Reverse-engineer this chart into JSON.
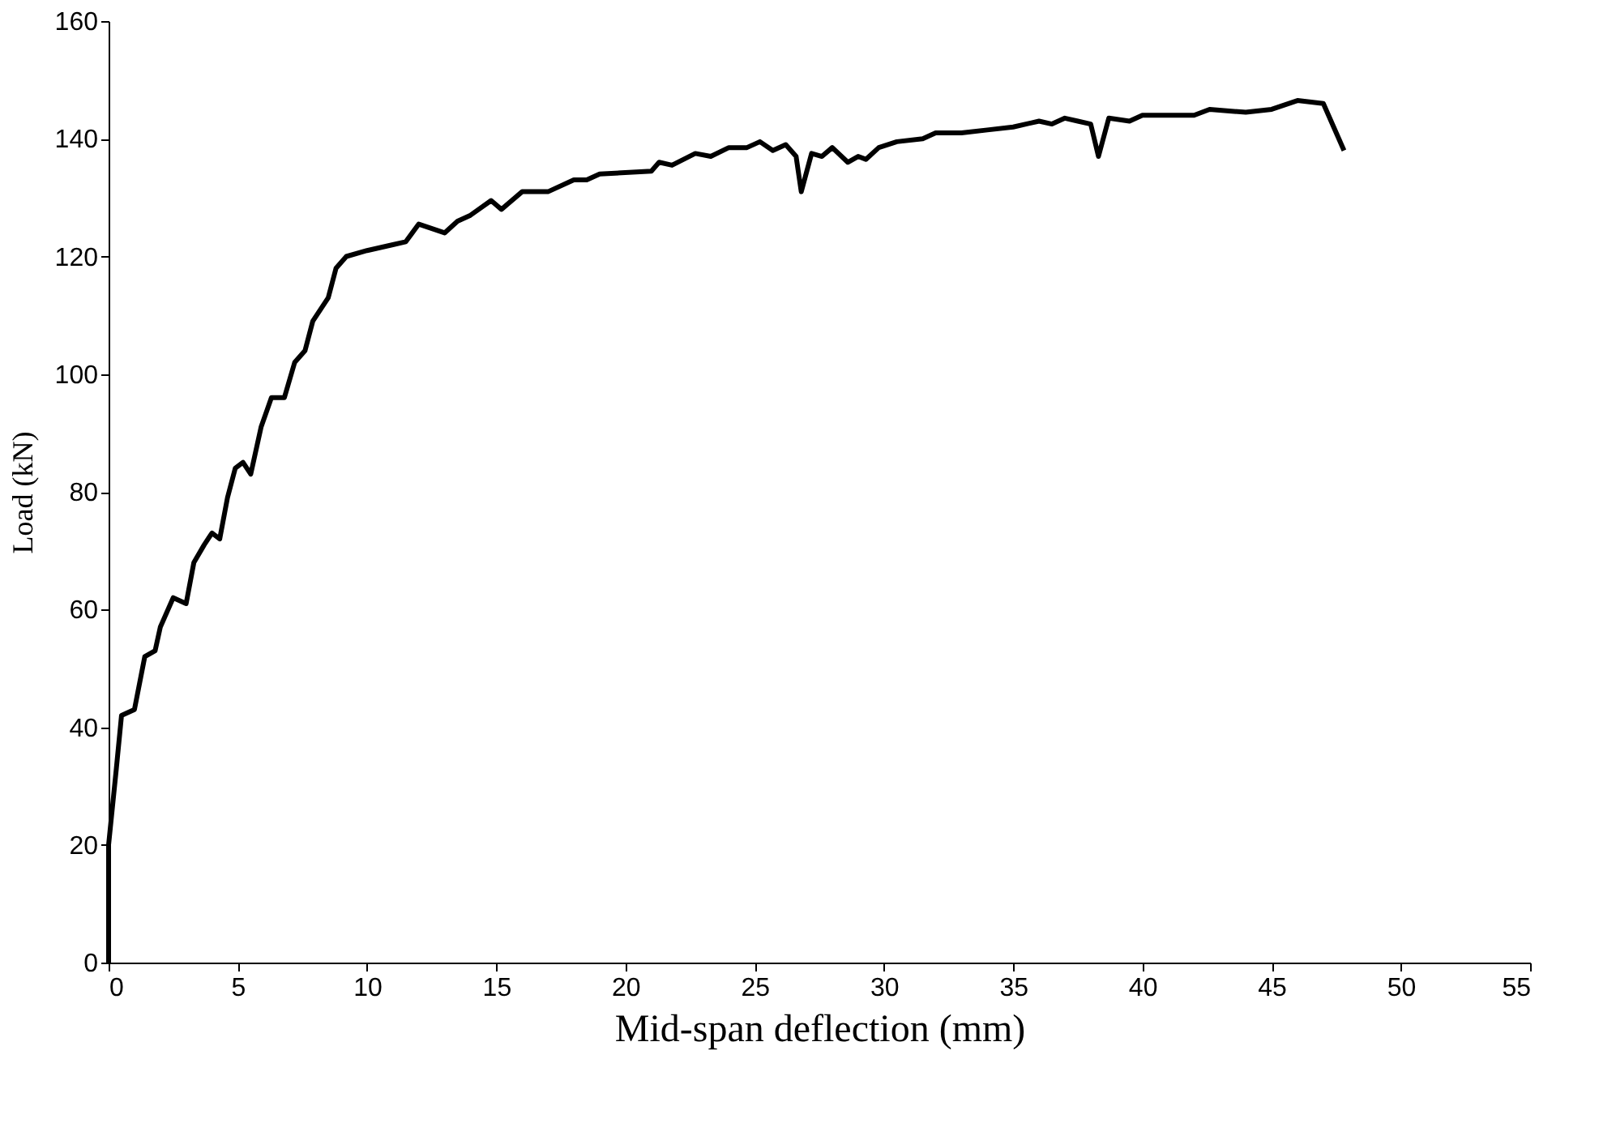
{
  "chart_data": {
    "type": "line",
    "xlabel": "Mid-span deflection (mm)",
    "ylabel": "Load (kN)",
    "xlim": [
      0,
      55
    ],
    "xticks": [
      0,
      5,
      10,
      15,
      20,
      25,
      30,
      35,
      40,
      45,
      50,
      55
    ],
    "ylim": [
      0,
      160
    ],
    "yticks": [
      0,
      20,
      40,
      60,
      80,
      100,
      120,
      140,
      160
    ],
    "grid": false,
    "marker": "none",
    "line_style": "solid",
    "series": [
      {
        "color": "#000000",
        "x": [
          0,
          0,
          0.3,
          0.5,
          1,
          1.4,
          1.8,
          2,
          2.5,
          3,
          3.3,
          3.7,
          4,
          4.3,
          4.6,
          4.9,
          5.2,
          5.5,
          5.9,
          6.3,
          6.8,
          7.2,
          7.6,
          7.9,
          8.5,
          8.8,
          9.2,
          10,
          11,
          11.5,
          12,
          13,
          13.5,
          14,
          14.8,
          15.2,
          16,
          17,
          18,
          18.5,
          19,
          21,
          21.3,
          21.8,
          22.7,
          23.3,
          24,
          24.7,
          25.2,
          25.7,
          26.2,
          26.6,
          26.8,
          27.2,
          27.6,
          28,
          28.6,
          29,
          29.3,
          29.8,
          30.5,
          31.5,
          32,
          33,
          34,
          35,
          36,
          36.5,
          37,
          37.5,
          38,
          38.3,
          38.7,
          39.5,
          40,
          41,
          42,
          42.6,
          44,
          45,
          46,
          47,
          47.5,
          47.8
        ],
        "values": [
          0,
          20,
          33,
          42,
          43,
          52,
          53,
          57,
          62,
          61,
          68,
          71,
          73,
          72,
          79,
          84,
          85,
          83,
          91,
          96,
          96,
          102,
          104,
          109,
          113,
          118,
          120,
          121,
          122,
          122.5,
          125.5,
          124,
          126,
          127,
          129.5,
          128,
          131,
          131,
          133,
          133,
          134,
          134.5,
          136,
          135.5,
          137.5,
          137,
          138.5,
          138.5,
          139.5,
          138,
          139,
          137,
          131,
          137.5,
          137,
          138.5,
          136,
          137,
          136.5,
          138.5,
          139.5,
          140,
          141,
          141,
          141.5,
          142,
          143,
          142.5,
          143.5,
          143,
          142.5,
          137,
          143.5,
          143,
          144,
          144,
          144,
          145,
          144.5,
          145,
          146.5,
          146,
          141,
          138
        ]
      }
    ]
  }
}
